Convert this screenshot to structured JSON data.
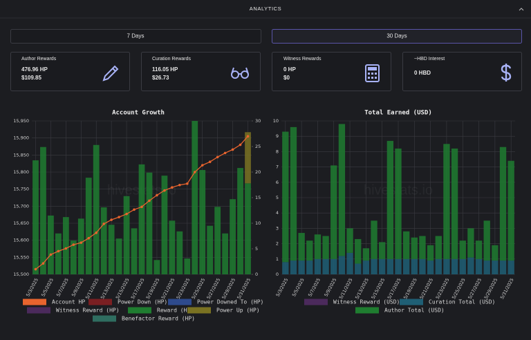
{
  "header": {
    "title": "ANALYTICS"
  },
  "buttons": [
    "7 Days",
    "30 Days"
  ],
  "cards": [
    {
      "label": "Author Rewards",
      "lines": [
        "476.96 HP",
        "$109.85"
      ]
    },
    {
      "label": "Curation Rewards",
      "lines": [
        "116.05 HP",
        "$26.73"
      ]
    },
    {
      "label": "Witness Rewards",
      "lines": [
        "0 HP",
        "$0"
      ]
    },
    {
      "label": "~HBD Interest",
      "lines": [
        "0 HBD"
      ]
    }
  ],
  "watermark": "hivestats.io",
  "chart_data": [
    {
      "type": "combo",
      "title": "Account Growth",
      "categories": [
        "5/3/2025",
        null,
        "5/5/2025",
        null,
        "5/7/2025",
        null,
        "5/9/2025",
        null,
        "5/11/2025",
        null,
        "5/13/2025",
        null,
        "5/15/2025",
        null,
        "5/17/2025",
        null,
        "5/19/2025",
        null,
        "5/21/2025",
        null,
        "5/23/2025",
        null,
        "5/25/2025",
        null,
        "5/27/2025",
        null,
        "5/29/2025",
        null,
        "5/31/2025"
      ],
      "ylim": [
        15500,
        15950
      ],
      "yticks": [
        {
          "value": 15500,
          "label": "15,500"
        },
        {
          "value": 15550,
          "label": "15,550"
        },
        {
          "value": 15600,
          "label": "15,600"
        },
        {
          "value": 15650,
          "label": "15,650"
        },
        {
          "value": 15700,
          "label": "15,700"
        },
        {
          "value": 15750,
          "label": "15,750"
        },
        {
          "value": 15800,
          "label": "15,800"
        },
        {
          "value": 15850,
          "label": "15,850"
        },
        {
          "value": 15900,
          "label": "15,900"
        },
        {
          "value": 15950,
          "label": "15,950"
        }
      ],
      "y2lim": [
        0,
        30
      ],
      "y2ticks": [
        0,
        5,
        10,
        15,
        20,
        25,
        30
      ],
      "grid": true,
      "series": [
        {
          "name": "Account HP",
          "type": "line",
          "color": "#e8642e",
          "values": [
            15515,
            15532,
            15558,
            15568,
            15576,
            15587,
            15593,
            15606,
            15622,
            15648,
            15660,
            15668,
            15677,
            15690,
            15698,
            15716,
            15732,
            15746,
            15755,
            15762,
            15766,
            15800,
            15820,
            15830,
            15844,
            15856,
            15866,
            15880,
            15905
          ]
        },
        {
          "name": "Power Down (HP)",
          "type": "bar",
          "axis": "y2",
          "color": "#7a1f22",
          "values": [
            0,
            0,
            0,
            0,
            0,
            0,
            0,
            0,
            0,
            0,
            0,
            0,
            0,
            0,
            0,
            0,
            0,
            0,
            0,
            0,
            0,
            0,
            0,
            0,
            0,
            0,
            0,
            0,
            0
          ]
        },
        {
          "name": "Power Downed To (HP)",
          "type": "bar",
          "axis": "y2",
          "color": "#2e4a8c",
          "values": [
            0,
            0,
            0,
            0,
            0,
            0,
            0,
            0,
            0,
            0,
            0,
            0,
            0,
            0,
            0,
            0,
            0,
            0,
            0,
            0,
            0,
            0,
            0,
            0,
            0,
            0,
            0,
            0,
            0
          ]
        },
        {
          "name": "Witness Reward (HP)",
          "type": "bar",
          "axis": "y2",
          "color": "#4b2a5c",
          "values": [
            0,
            0,
            0,
            0,
            0,
            0,
            0,
            0,
            0,
            0,
            0,
            0,
            0,
            0,
            0,
            0,
            0,
            0,
            0,
            0,
            0,
            0,
            0,
            0,
            0,
            0,
            0,
            0,
            0
          ]
        },
        {
          "name": "Reward (HP)",
          "type": "bar",
          "axis": "y2",
          "color": "#1f7d30",
          "values": [
            22.3,
            24.9,
            11.5,
            8,
            11.2,
            6.6,
            10.9,
            18.9,
            25.3,
            13.1,
            9.7,
            7,
            15.3,
            9,
            21.5,
            19.9,
            2.8,
            19.3,
            10.5,
            8.4,
            3.1,
            30,
            20.4,
            9.5,
            13.2,
            8,
            14.7,
            20.8,
            17.8
          ]
        },
        {
          "name": "Power Up (HP)",
          "type": "bar",
          "axis": "y2",
          "color": "#7a7222",
          "values": [
            0,
            0,
            0,
            0,
            0,
            0,
            0,
            0,
            0,
            0,
            0,
            0,
            0,
            0,
            0,
            0,
            0,
            0,
            0,
            0,
            0,
            0,
            0,
            0,
            0,
            0,
            0,
            0,
            10
          ]
        },
        {
          "name": "Benefactor Reward (HP)",
          "type": "bar",
          "axis": "y2",
          "color": "#2f6d60",
          "values": [
            0,
            0,
            0,
            0,
            0,
            0,
            0,
            0,
            0,
            0,
            0,
            0,
            0,
            0,
            0,
            0,
            0,
            0,
            0,
            0,
            0,
            0,
            0,
            0,
            0,
            0,
            0,
            0,
            0
          ]
        }
      ]
    },
    {
      "type": "bar",
      "title": "Total Earned (USD)",
      "stacked": true,
      "categories": [
        "5/3/2025",
        null,
        "5/5/2025",
        null,
        "5/7/2025",
        null,
        "5/9/2025",
        null,
        "5/11/2025",
        null,
        "5/13/2025",
        null,
        "5/15/2025",
        null,
        "5/17/2025",
        null,
        "5/19/2025",
        null,
        "5/21/2025",
        null,
        "5/23/2025",
        null,
        "5/25/2025",
        null,
        "5/27/2025",
        null,
        "5/29/2025",
        null,
        "5/31/2025"
      ],
      "ylim": [
        0,
        10
      ],
      "yticks": [
        0,
        1,
        2,
        3,
        4,
        5,
        6,
        7,
        8,
        9,
        10
      ],
      "grid": true,
      "series": [
        {
          "name": "Witness Reward (USD)",
          "color": "#4b2a5c",
          "values": [
            0,
            0,
            0,
            0,
            0,
            0,
            0,
            0,
            0,
            0,
            0,
            0,
            0,
            0,
            0,
            0,
            0,
            0,
            0,
            0,
            0,
            0,
            0,
            0,
            0,
            0,
            0,
            0,
            0
          ]
        },
        {
          "name": "Curation Total (USD)",
          "color": "#1f5f75",
          "values": [
            0.8,
            0.9,
            0.9,
            0.9,
            1.0,
            1.0,
            1.0,
            1.2,
            1.4,
            0.7,
            0.9,
            1.0,
            1.0,
            1.0,
            1.0,
            1.0,
            1.0,
            1.0,
            0.9,
            1.0,
            1.0,
            1.0,
            1.0,
            1.1,
            1.0,
            0.9,
            0.9,
            0.9,
            0.9
          ]
        },
        {
          "name": "Author Total (USD)",
          "color": "#1f7d30",
          "values": [
            8.5,
            8.7,
            1.8,
            1.3,
            1.6,
            1.5,
            6.1,
            8.6,
            1.6,
            1.6,
            0.8,
            2.5,
            1.1,
            7.7,
            7.2,
            1.8,
            1.4,
            1.5,
            1.0,
            1.5,
            7.5,
            7.2,
            1.2,
            1.9,
            1.2,
            2.6,
            1.0,
            7.4,
            6.5
          ]
        }
      ]
    }
  ]
}
